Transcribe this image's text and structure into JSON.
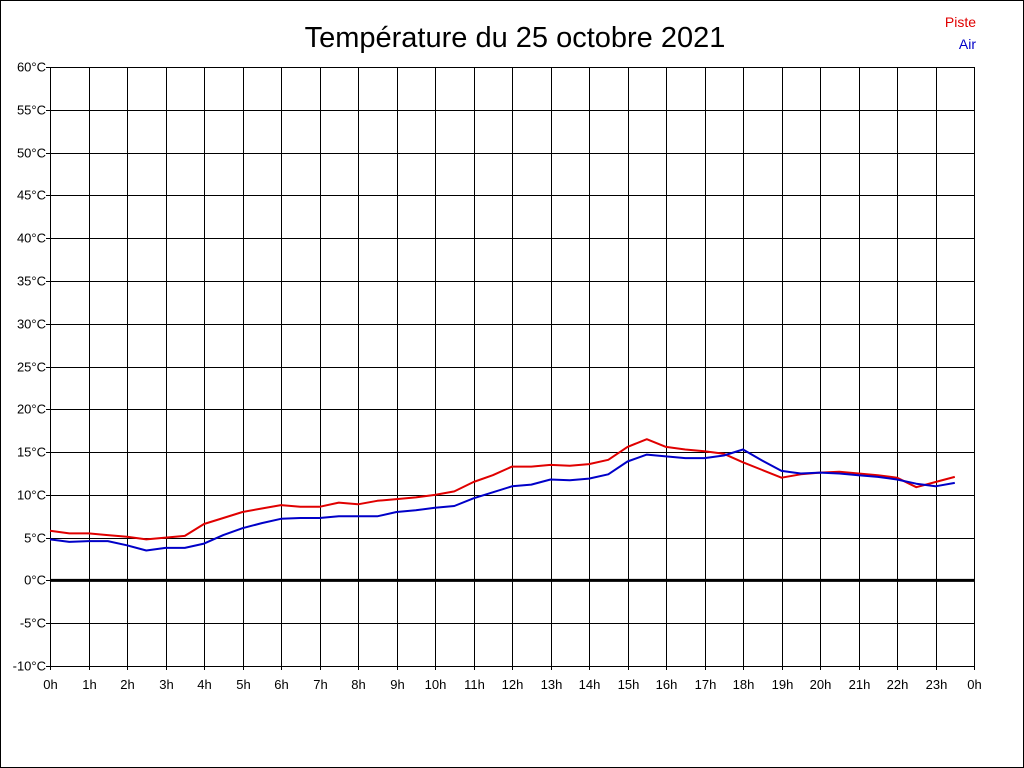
{
  "chart_data": {
    "type": "line",
    "title": "Température du 25 octobre 2021",
    "xlabel": "",
    "ylabel": "",
    "ylim": [
      -10,
      60
    ],
    "xlim": [
      0,
      24
    ],
    "grid": true,
    "legend_placement": "top-right",
    "y_ticks": [
      "60°C",
      "55°C",
      "50°C",
      "45°C",
      "40°C",
      "35°C",
      "30°C",
      "25°C",
      "20°C",
      "15°C",
      "10°C",
      "5°C",
      "0°C",
      "-5°C",
      "-10°C"
    ],
    "x_ticks": [
      "0h",
      "1h",
      "2h",
      "3h",
      "4h",
      "5h",
      "6h",
      "7h",
      "8h",
      "9h",
      "10h",
      "11h",
      "12h",
      "13h",
      "14h",
      "15h",
      "16h",
      "17h",
      "18h",
      "19h",
      "20h",
      "21h",
      "22h",
      "23h",
      "0h"
    ],
    "x": [
      0,
      0.5,
      1,
      1.5,
      2,
      2.5,
      3,
      3.5,
      4,
      4.5,
      5,
      5.5,
      6,
      6.5,
      7,
      7.5,
      8,
      8.5,
      9,
      9.5,
      10,
      10.5,
      11,
      11.5,
      12,
      12.5,
      13,
      13.5,
      14,
      14.5,
      15,
      15.5,
      16,
      16.5,
      17,
      17.5,
      18,
      18.5,
      19,
      19.5,
      20,
      20.5,
      21,
      21.5,
      22,
      22.5,
      23,
      23.5
    ],
    "series": [
      {
        "name": "Piste",
        "color": "#e00000",
        "values": [
          5.8,
          5.5,
          5.5,
          5.3,
          5.1,
          4.8,
          5.0,
          5.2,
          6.6,
          7.3,
          8.0,
          8.4,
          8.8,
          8.6,
          8.6,
          9.1,
          8.9,
          9.3,
          9.5,
          9.7,
          10.0,
          10.4,
          11.5,
          12.3,
          13.3,
          13.3,
          13.5,
          13.4,
          13.6,
          14.1,
          15.6,
          16.5,
          15.6,
          15.3,
          15.1,
          14.8,
          13.8,
          12.9,
          12.0,
          12.4,
          12.6,
          12.7,
          12.5,
          12.3,
          12.0,
          10.9,
          11.5,
          12.1
        ]
      },
      {
        "name": "Air",
        "color": "#0000c8",
        "values": [
          4.8,
          4.5,
          4.6,
          4.6,
          4.1,
          3.5,
          3.8,
          3.8,
          4.3,
          5.3,
          6.1,
          6.7,
          7.2,
          7.3,
          7.3,
          7.5,
          7.5,
          7.5,
          8.0,
          8.2,
          8.5,
          8.7,
          9.6,
          10.3,
          11.0,
          11.2,
          11.8,
          11.7,
          11.9,
          12.4,
          13.9,
          14.7,
          14.5,
          14.3,
          14.3,
          14.6,
          15.3,
          14.0,
          12.8,
          12.5,
          12.6,
          12.5,
          12.3,
          12.1,
          11.8,
          11.3,
          11.0,
          11.4
        ]
      }
    ]
  }
}
